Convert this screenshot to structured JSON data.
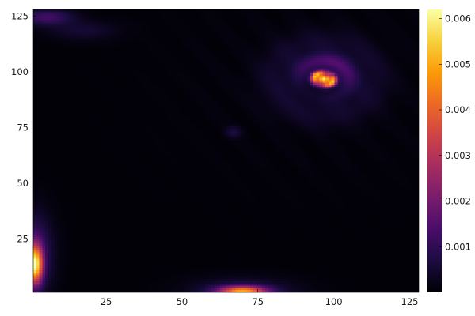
{
  "chart_data": {
    "type": "heatmap",
    "title": "",
    "xlabel": "",
    "ylabel": "",
    "grid_size": 128,
    "xlim": [
      1,
      128
    ],
    "ylim": [
      1,
      128
    ],
    "x_ticks": [
      25,
      50,
      75,
      100,
      125
    ],
    "y_ticks": [
      25,
      50,
      75,
      100,
      125
    ],
    "colormap": "inferno",
    "colorbar": {
      "range": [
        0,
        0.0062
      ],
      "ticks": [
        0.001,
        0.002,
        0.003,
        0.004,
        0.005,
        0.006
      ],
      "tick_labels": [
        "0.001",
        "0.002",
        "0.003",
        "0.004",
        "0.005",
        "0.006"
      ]
    },
    "colormap_stops": [
      "#000004",
      "#1b0c41",
      "#4a0c6b",
      "#781c6d",
      "#a52c60",
      "#cf4446",
      "#ed6925",
      "#fb9b06",
      "#f7d13d",
      "#fcffa4"
    ],
    "background_value": 4e-05,
    "features": [
      {
        "label": "vortex",
        "x": 97,
        "y": 97,
        "peak": 0.0058
      },
      {
        "label": "bright-spot-left-edge",
        "x": 1,
        "y": 13,
        "peak": 0.0052
      },
      {
        "label": "bright-spot-bottom",
        "x": 70,
        "y": 1,
        "peak": 0.0042
      },
      {
        "label": "faint-top-left",
        "x": 5,
        "y": 125,
        "peak": 0.0012
      },
      {
        "label": "faint-small-spot",
        "x": 67,
        "y": 73,
        "peak": 0.0006
      }
    ]
  }
}
